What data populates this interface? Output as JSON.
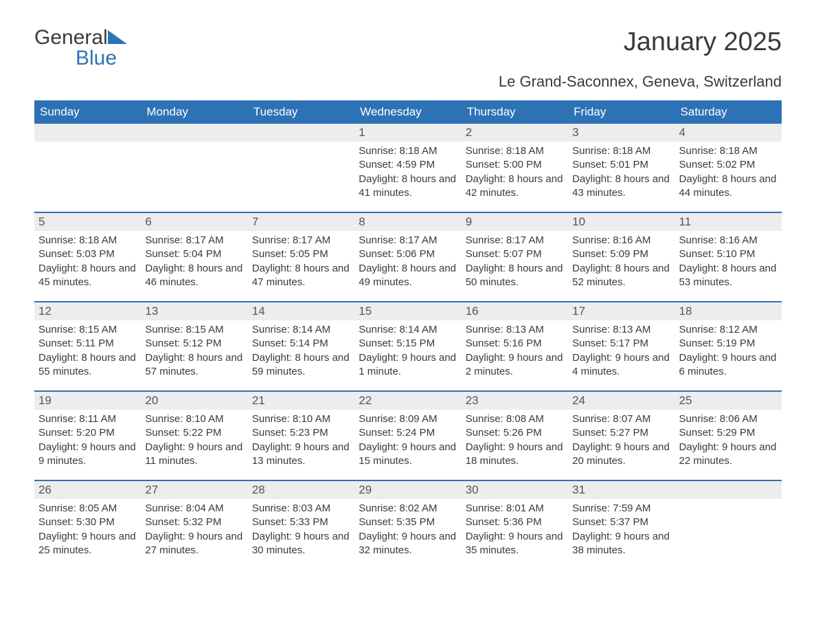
{
  "logo": {
    "word1": "General",
    "word2": "Blue"
  },
  "title": "January 2025",
  "subtitle": "Le Grand-Saconnex, Geneva, Switzerland",
  "colors": {
    "header_bg": "#2e72b6",
    "header_text": "#ffffff",
    "daynum_bg": "#ededed",
    "text": "#3a3a3a",
    "border": "#2e72b6",
    "logo_blue": "#2e72b6"
  },
  "weekdays": [
    "Sunday",
    "Monday",
    "Tuesday",
    "Wednesday",
    "Thursday",
    "Friday",
    "Saturday"
  ],
  "weeks": [
    [
      {
        "day": "",
        "sunrise": "",
        "sunset": "",
        "daylight": ""
      },
      {
        "day": "",
        "sunrise": "",
        "sunset": "",
        "daylight": ""
      },
      {
        "day": "",
        "sunrise": "",
        "sunset": "",
        "daylight": ""
      },
      {
        "day": "1",
        "sunrise": "Sunrise: 8:18 AM",
        "sunset": "Sunset: 4:59 PM",
        "daylight": "Daylight: 8 hours and 41 minutes."
      },
      {
        "day": "2",
        "sunrise": "Sunrise: 8:18 AM",
        "sunset": "Sunset: 5:00 PM",
        "daylight": "Daylight: 8 hours and 42 minutes."
      },
      {
        "day": "3",
        "sunrise": "Sunrise: 8:18 AM",
        "sunset": "Sunset: 5:01 PM",
        "daylight": "Daylight: 8 hours and 43 minutes."
      },
      {
        "day": "4",
        "sunrise": "Sunrise: 8:18 AM",
        "sunset": "Sunset: 5:02 PM",
        "daylight": "Daylight: 8 hours and 44 minutes."
      }
    ],
    [
      {
        "day": "5",
        "sunrise": "Sunrise: 8:18 AM",
        "sunset": "Sunset: 5:03 PM",
        "daylight": "Daylight: 8 hours and 45 minutes."
      },
      {
        "day": "6",
        "sunrise": "Sunrise: 8:17 AM",
        "sunset": "Sunset: 5:04 PM",
        "daylight": "Daylight: 8 hours and 46 minutes."
      },
      {
        "day": "7",
        "sunrise": "Sunrise: 8:17 AM",
        "sunset": "Sunset: 5:05 PM",
        "daylight": "Daylight: 8 hours and 47 minutes."
      },
      {
        "day": "8",
        "sunrise": "Sunrise: 8:17 AM",
        "sunset": "Sunset: 5:06 PM",
        "daylight": "Daylight: 8 hours and 49 minutes."
      },
      {
        "day": "9",
        "sunrise": "Sunrise: 8:17 AM",
        "sunset": "Sunset: 5:07 PM",
        "daylight": "Daylight: 8 hours and 50 minutes."
      },
      {
        "day": "10",
        "sunrise": "Sunrise: 8:16 AM",
        "sunset": "Sunset: 5:09 PM",
        "daylight": "Daylight: 8 hours and 52 minutes."
      },
      {
        "day": "11",
        "sunrise": "Sunrise: 8:16 AM",
        "sunset": "Sunset: 5:10 PM",
        "daylight": "Daylight: 8 hours and 53 minutes."
      }
    ],
    [
      {
        "day": "12",
        "sunrise": "Sunrise: 8:15 AM",
        "sunset": "Sunset: 5:11 PM",
        "daylight": "Daylight: 8 hours and 55 minutes."
      },
      {
        "day": "13",
        "sunrise": "Sunrise: 8:15 AM",
        "sunset": "Sunset: 5:12 PM",
        "daylight": "Daylight: 8 hours and 57 minutes."
      },
      {
        "day": "14",
        "sunrise": "Sunrise: 8:14 AM",
        "sunset": "Sunset: 5:14 PM",
        "daylight": "Daylight: 8 hours and 59 minutes."
      },
      {
        "day": "15",
        "sunrise": "Sunrise: 8:14 AM",
        "sunset": "Sunset: 5:15 PM",
        "daylight": "Daylight: 9 hours and 1 minute."
      },
      {
        "day": "16",
        "sunrise": "Sunrise: 8:13 AM",
        "sunset": "Sunset: 5:16 PM",
        "daylight": "Daylight: 9 hours and 2 minutes."
      },
      {
        "day": "17",
        "sunrise": "Sunrise: 8:13 AM",
        "sunset": "Sunset: 5:17 PM",
        "daylight": "Daylight: 9 hours and 4 minutes."
      },
      {
        "day": "18",
        "sunrise": "Sunrise: 8:12 AM",
        "sunset": "Sunset: 5:19 PM",
        "daylight": "Daylight: 9 hours and 6 minutes."
      }
    ],
    [
      {
        "day": "19",
        "sunrise": "Sunrise: 8:11 AM",
        "sunset": "Sunset: 5:20 PM",
        "daylight": "Daylight: 9 hours and 9 minutes."
      },
      {
        "day": "20",
        "sunrise": "Sunrise: 8:10 AM",
        "sunset": "Sunset: 5:22 PM",
        "daylight": "Daylight: 9 hours and 11 minutes."
      },
      {
        "day": "21",
        "sunrise": "Sunrise: 8:10 AM",
        "sunset": "Sunset: 5:23 PM",
        "daylight": "Daylight: 9 hours and 13 minutes."
      },
      {
        "day": "22",
        "sunrise": "Sunrise: 8:09 AM",
        "sunset": "Sunset: 5:24 PM",
        "daylight": "Daylight: 9 hours and 15 minutes."
      },
      {
        "day": "23",
        "sunrise": "Sunrise: 8:08 AM",
        "sunset": "Sunset: 5:26 PM",
        "daylight": "Daylight: 9 hours and 18 minutes."
      },
      {
        "day": "24",
        "sunrise": "Sunrise: 8:07 AM",
        "sunset": "Sunset: 5:27 PM",
        "daylight": "Daylight: 9 hours and 20 minutes."
      },
      {
        "day": "25",
        "sunrise": "Sunrise: 8:06 AM",
        "sunset": "Sunset: 5:29 PM",
        "daylight": "Daylight: 9 hours and 22 minutes."
      }
    ],
    [
      {
        "day": "26",
        "sunrise": "Sunrise: 8:05 AM",
        "sunset": "Sunset: 5:30 PM",
        "daylight": "Daylight: 9 hours and 25 minutes."
      },
      {
        "day": "27",
        "sunrise": "Sunrise: 8:04 AM",
        "sunset": "Sunset: 5:32 PM",
        "daylight": "Daylight: 9 hours and 27 minutes."
      },
      {
        "day": "28",
        "sunrise": "Sunrise: 8:03 AM",
        "sunset": "Sunset: 5:33 PM",
        "daylight": "Daylight: 9 hours and 30 minutes."
      },
      {
        "day": "29",
        "sunrise": "Sunrise: 8:02 AM",
        "sunset": "Sunset: 5:35 PM",
        "daylight": "Daylight: 9 hours and 32 minutes."
      },
      {
        "day": "30",
        "sunrise": "Sunrise: 8:01 AM",
        "sunset": "Sunset: 5:36 PM",
        "daylight": "Daylight: 9 hours and 35 minutes."
      },
      {
        "day": "31",
        "sunrise": "Sunrise: 7:59 AM",
        "sunset": "Sunset: 5:37 PM",
        "daylight": "Daylight: 9 hours and 38 minutes."
      },
      {
        "day": "",
        "sunrise": "",
        "sunset": "",
        "daylight": ""
      }
    ]
  ]
}
